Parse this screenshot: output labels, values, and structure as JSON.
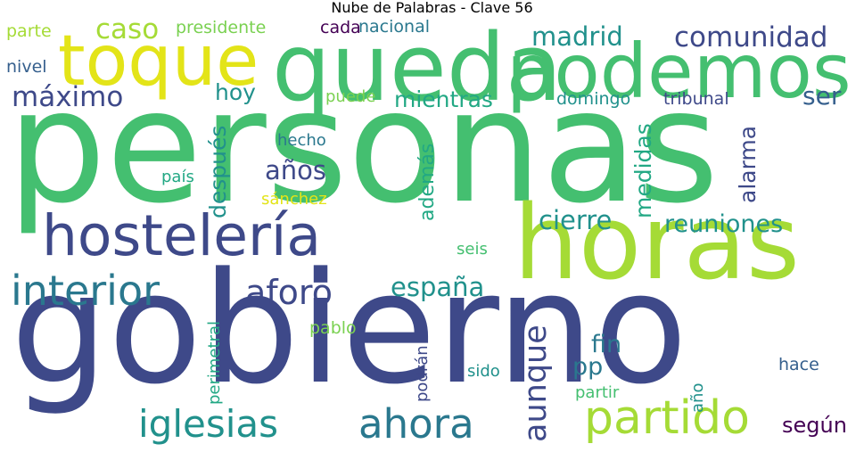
{
  "title": "Nube de Palabras - Clave 56",
  "colors": {
    "green": "#44bf70",
    "dark_blue": "#3e4989",
    "lime": "#a5db36",
    "yellow": "#e3e418",
    "teal": "#2a788e",
    "teal_green": "#21918c",
    "purple": "#440154",
    "sea_green": "#22a884",
    "mid_green": "#7ad151",
    "slate": "#355f8d"
  },
  "words": [
    "personas",
    "gobierno",
    "horas",
    "queda",
    "podemos",
    "hostelería",
    "toque",
    "partido",
    "interior",
    "ahora",
    "iglesias",
    "aforo",
    "españa",
    "cierre",
    "reuniones",
    "madrid",
    "comunidad",
    "caso",
    "máximo",
    "hoy",
    "mientras",
    "años",
    "aunque",
    "ser",
    "después",
    "medidas",
    "alarma",
    "además",
    "fin",
    "pp",
    "según",
    "presidente",
    "parte",
    "nivel",
    "cada",
    "nacional",
    "puede",
    "domingo",
    "tribunal",
    "hecho",
    "país",
    "sánchez",
    "seis",
    "pablo",
    "perimetral",
    "podrán",
    "sido",
    "partir",
    "año",
    "hace"
  ]
}
